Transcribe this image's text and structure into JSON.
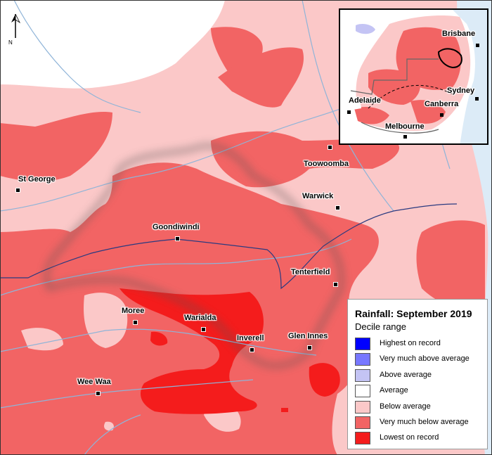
{
  "legend": {
    "title": "Rainfall: September 2019",
    "subtitle": "Decile range",
    "items": [
      {
        "label": "Highest on record",
        "color": "#0000ff"
      },
      {
        "label": "Very much above average",
        "color": "#7777ff"
      },
      {
        "label": "Above average",
        "color": "#c4c4f4"
      },
      {
        "label": "Average",
        "color": "#ffffff"
      },
      {
        "label": "Below average",
        "color": "#fbc8c8"
      },
      {
        "label": "Very much below average",
        "color": "#f26464"
      },
      {
        "label": "Lowest on record",
        "color": "#f41c1c"
      }
    ]
  },
  "towns": [
    {
      "name": "St George"
    },
    {
      "name": "Goondiwindi"
    },
    {
      "name": "Toowoomba"
    },
    {
      "name": "Warwick"
    },
    {
      "name": "Tenterfield"
    },
    {
      "name": "Moree"
    },
    {
      "name": "Warialda"
    },
    {
      "name": "Inverell"
    },
    {
      "name": "Glen Innes"
    },
    {
      "name": "Wee Waa"
    }
  ],
  "inset": {
    "cities": [
      {
        "name": "Brisbane"
      },
      {
        "name": "Sydney"
      },
      {
        "name": "Canberra"
      },
      {
        "name": "Adelaide"
      },
      {
        "name": "Melbourne"
      }
    ]
  },
  "north_arrow": {
    "label": "N"
  },
  "colors": {
    "below_average": "#fbc8c8",
    "very_much_below": "#f26464",
    "lowest": "#f41c1c",
    "ocean": "#dcebf7",
    "river": "#8fb4d8",
    "border": "#2a3a80"
  },
  "icons": {
    "north": "north-arrow-icon",
    "town": "town-marker-icon"
  }
}
